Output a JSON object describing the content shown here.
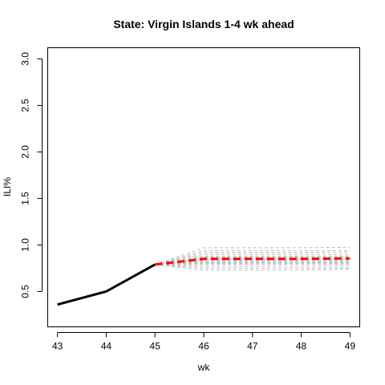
{
  "chart_data": {
    "type": "line",
    "title": "State: Virgin Islands 1-4 wk ahead",
    "xlabel": "wk",
    "ylabel": "ILI%",
    "xlim": [
      42.8,
      49.2
    ],
    "ylim": [
      0.12,
      3.12
    ],
    "x_ticks": [
      43,
      44,
      45,
      46,
      47,
      48,
      49
    ],
    "y_ticks": [
      0.5,
      1.0,
      1.5,
      2.0,
      2.5,
      3.0
    ],
    "y_tick_labels": [
      "0.5",
      "1.0",
      "1.5",
      "2.0",
      "2.5",
      "3.0"
    ],
    "grid": false,
    "legend": "none",
    "series": [
      {
        "role": "observed",
        "color": "#000000",
        "style": "solid",
        "x": [
          43,
          44,
          45
        ],
        "y": [
          0.36,
          0.5,
          0.79
        ]
      },
      {
        "role": "forecast_mean",
        "color": "#ff0000",
        "style": "dashed",
        "x": [
          45,
          46,
          47,
          48,
          49
        ],
        "y": [
          0.79,
          0.85,
          0.85,
          0.85,
          0.855
        ]
      }
    ],
    "ensemble": {
      "color": "#bebebe",
      "style": "dashed",
      "start": [
        45,
        0.79
      ],
      "x": [
        46,
        47,
        48,
        49
      ],
      "values": [
        [
          0.97,
          0.97,
          0.97,
          0.975
        ],
        [
          0.94,
          0.94,
          0.94,
          0.94
        ],
        [
          0.92,
          0.92,
          0.92,
          0.925
        ],
        [
          0.9,
          0.9,
          0.9,
          0.9
        ],
        [
          0.88,
          0.88,
          0.88,
          0.88
        ],
        [
          0.87,
          0.87,
          0.87,
          0.87
        ],
        [
          0.86,
          0.86,
          0.86,
          0.86
        ],
        [
          0.85,
          0.85,
          0.85,
          0.85
        ],
        [
          0.84,
          0.84,
          0.84,
          0.84
        ],
        [
          0.83,
          0.83,
          0.83,
          0.83
        ],
        [
          0.82,
          0.82,
          0.82,
          0.82
        ],
        [
          0.81,
          0.81,
          0.81,
          0.81
        ],
        [
          0.8,
          0.8,
          0.8,
          0.8
        ],
        [
          0.79,
          0.79,
          0.79,
          0.79
        ],
        [
          0.77,
          0.77,
          0.77,
          0.77
        ],
        [
          0.75,
          0.75,
          0.75,
          0.75
        ],
        [
          0.73,
          0.73,
          0.73,
          0.74
        ]
      ]
    }
  }
}
